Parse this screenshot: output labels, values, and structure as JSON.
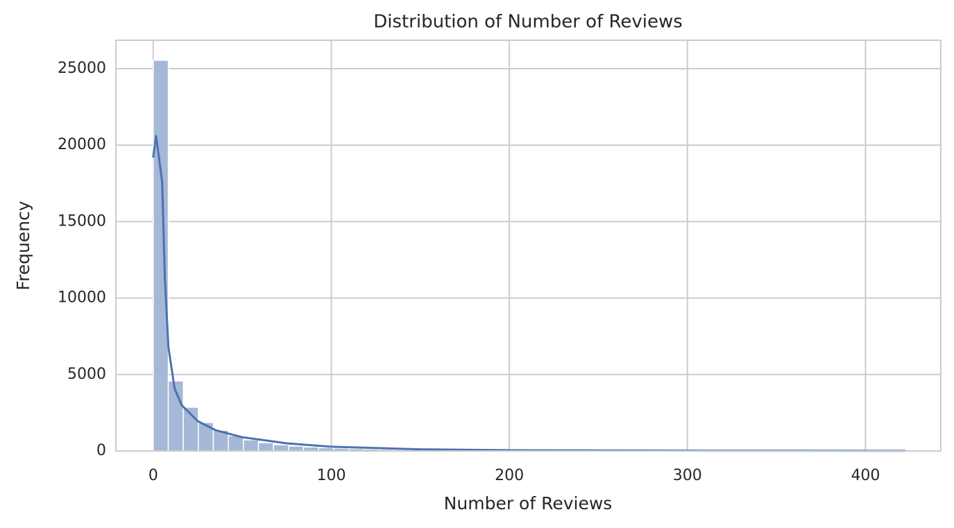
{
  "chart_data": {
    "type": "histogram",
    "title": "Distribution of Number of Reviews",
    "xlabel": "Number of Reviews",
    "ylabel": "Frequency",
    "bins": [
      0,
      8.44,
      16.88,
      25.32,
      33.76,
      42.2,
      50.64,
      59.08,
      67.52,
      75.96,
      84.4,
      92.84,
      101.28,
      109.72,
      118.16,
      126.6,
      135.04,
      143.48,
      151.92,
      160.36,
      168.8,
      177.24,
      185.68,
      194.12,
      202.56,
      211,
      219.44,
      227.88,
      236.32,
      244.76,
      253.2,
      261.64,
      270.08,
      278.52,
      286.96,
      295.4,
      303.84,
      312.28,
      320.72,
      329.16,
      337.6,
      346.04,
      354.48,
      362.92,
      371.36,
      379.8,
      388.24,
      396.68,
      405.12,
      413.56,
      422
    ],
    "values": [
      25550,
      4580,
      2860,
      1860,
      1360,
      1000,
      730,
      545,
      410,
      320,
      260,
      215,
      180,
      150,
      125,
      105,
      90,
      78,
      68,
      60,
      52,
      46,
      40,
      35,
      31,
      28,
      25,
      22,
      20,
      18,
      16,
      15,
      14,
      13,
      12,
      11,
      10,
      9,
      9,
      8,
      8,
      7,
      7,
      6,
      6,
      5,
      5,
      5,
      4,
      4
    ],
    "color": "#a5b8d7",
    "kde": {
      "color": "#4c72b0",
      "x": [
        0,
        1.6,
        5,
        6.5,
        8.5,
        12,
        16,
        25,
        35,
        50,
        75,
        100,
        150,
        200,
        300,
        422
      ],
      "values": [
        19240,
        20600,
        17600,
        11340,
        6800,
        4080,
        2990,
        1950,
        1360,
        900,
        500,
        280,
        110,
        50,
        20,
        10
      ]
    },
    "xlim": [
      -21,
      442.3
    ],
    "ylim": [
      0,
      26860
    ],
    "xticks": [
      0,
      100,
      200,
      300,
      400
    ],
    "yticks": [
      0,
      5000,
      10000,
      15000,
      20000,
      25000
    ],
    "grid": true
  }
}
